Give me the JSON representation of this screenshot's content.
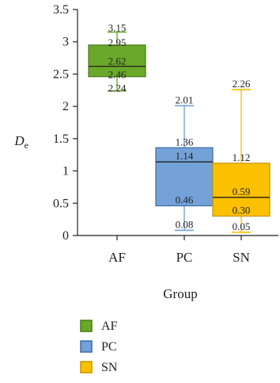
{
  "chart_data": {
    "type": "box",
    "xlabel": "Group",
    "ylabel": "D",
    "ylabel_subscript": "e",
    "ylim": [
      0,
      3.5
    ],
    "yticks": [
      "0",
      "0.5",
      "1",
      "1.5",
      "2",
      "2.5",
      "3",
      "3.5"
    ],
    "categories": [
      "AF",
      "PC",
      "SN"
    ],
    "legend_position": "bottom-left",
    "grid": false,
    "series": [
      {
        "name": "AF",
        "color": "#6aa82a",
        "border": "#4a7a1c",
        "max": 3.15,
        "q3": 2.95,
        "median": 2.62,
        "q1": 2.46,
        "min": 2.24,
        "labels": [
          "3.15",
          "2.95",
          "2.62",
          "2.46",
          "2.24"
        ]
      },
      {
        "name": "PC",
        "color": "#74a2d8",
        "border": "#3d6aa1",
        "max": 2.01,
        "q3": 1.36,
        "median": 1.14,
        "q1": 0.46,
        "min": 0.08,
        "labels": [
          "2.01",
          "1.36",
          "1.14",
          "0.46",
          "0.08"
        ]
      },
      {
        "name": "SN",
        "color": "#fbc000",
        "border": "#c89400",
        "max": 2.26,
        "q3": 1.12,
        "median": 0.59,
        "q1": 0.3,
        "min": 0.05,
        "labels": [
          "2.26",
          "1.12",
          "0.59",
          "0.30",
          "0.05"
        ]
      }
    ]
  }
}
